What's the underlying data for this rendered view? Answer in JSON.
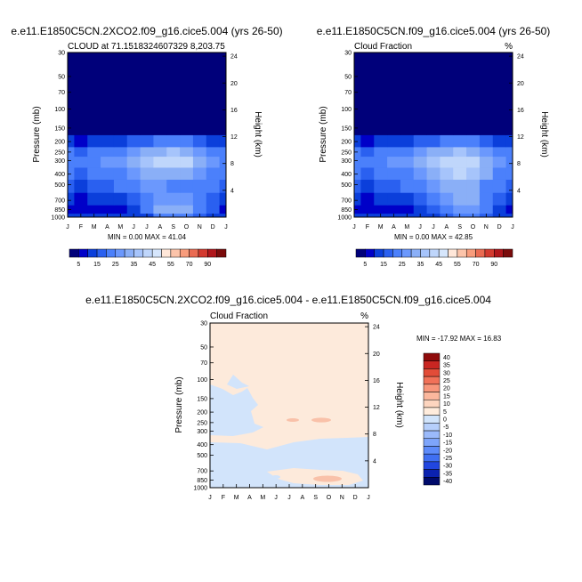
{
  "colors": {
    "abs_fill": [
      "#00007a",
      "#0000c8",
      "#0b3fdb",
      "#2a60f0",
      "#4b80fb",
      "#6b98fd",
      "#8aaff7",
      "#a6c4fb",
      "#bfd6fb",
      "#d6e6fc",
      "#ffe7d9",
      "#fcc4aa",
      "#f89c7c",
      "#ea6b52",
      "#d33a2f",
      "#b0161b",
      "#7a0b0b"
    ],
    "diff_fill": [
      "#000a6b",
      "#0b22b0",
      "#2146e0",
      "#3f6ff2",
      "#5d8bfa",
      "#7ea5fb",
      "#9bbafb",
      "#b6cffb",
      "#d1e4fb",
      "#ffecdc",
      "#fdd5bf",
      "#fbb79d",
      "#f8967b",
      "#f17158",
      "#e24c38",
      "#c92622",
      "#8f0b0b"
    ],
    "stratosphere": "#00007a",
    "diff_bg": "#fdeadb",
    "diff_neg": "#d2e4fb",
    "diff_pos": "#f9c1a9"
  },
  "chart_data": [
    {
      "type": "heatmap",
      "panel": "top-left",
      "title": "e.e11.E1850C5CN.2XCO2.f09_g16.cice5.004 (yrs 26-50)",
      "subtitle_left": "CLOUD at 71.1518324607329 8,203.75",
      "subtitle_right": "",
      "xlabel": "",
      "ylabel": "Pressure (mb)",
      "ylabel_right": "Height (km)",
      "x_ticks": [
        "J",
        "F",
        "M",
        "A",
        "M",
        "J",
        "J",
        "A",
        "S",
        "O",
        "N",
        "D",
        "J"
      ],
      "y_ticks": [
        "30",
        "50",
        "70",
        "100",
        "150",
        "200",
        "250",
        "300",
        "400",
        "500",
        "700",
        "850",
        "1000"
      ],
      "y_ticks_right": [
        "24",
        "20",
        "16",
        "12",
        "8",
        "4"
      ],
      "stats": "MIN =   0.00 MAX =  41.04",
      "min": 0.0,
      "max": 41.04,
      "colorbar_labels": [
        "5",
        "15",
        "25",
        "35",
        "45",
        "55",
        "70",
        "90"
      ],
      "colorbar_levels": [
        0,
        5,
        10,
        15,
        20,
        25,
        30,
        35,
        40,
        45,
        50,
        55,
        60,
        70,
        80,
        90,
        100
      ],
      "months": [
        "J",
        "F",
        "M",
        "A",
        "M",
        "J",
        "J",
        "A",
        "S",
        "O",
        "N",
        "D",
        "J"
      ],
      "levels_mb": [
        1000,
        850,
        700,
        500,
        400,
        300,
        250,
        200,
        150,
        100,
        70,
        50,
        30
      ],
      "values": [
        [
          14,
          12,
          13,
          10,
          11,
          12,
          13,
          20,
          24,
          22,
          16,
          12,
          14
        ],
        [
          6,
          5,
          6,
          5,
          8,
          14,
          22,
          30,
          34,
          32,
          24,
          16,
          6
        ],
        [
          11,
          9,
          10,
          11,
          14,
          18,
          23,
          26,
          28,
          26,
          22,
          16,
          11
        ],
        [
          16,
          14,
          16,
          18,
          20,
          22,
          25,
          25,
          24,
          22,
          22,
          20,
          16
        ],
        [
          20,
          18,
          20,
          22,
          24,
          26,
          30,
          32,
          34,
          32,
          28,
          24,
          20
        ],
        [
          24,
          22,
          24,
          26,
          28,
          30,
          36,
          40,
          41,
          40,
          34,
          28,
          24
        ],
        [
          20,
          18,
          20,
          22,
          24,
          26,
          30,
          34,
          35,
          34,
          28,
          24,
          20
        ],
        [
          10,
          8,
          10,
          12,
          14,
          16,
          18,
          20,
          20,
          20,
          18,
          14,
          10
        ],
        [
          0,
          0,
          0,
          0,
          0,
          0,
          2,
          2,
          2,
          2,
          0,
          0,
          0
        ],
        [
          0,
          0,
          0,
          0,
          0,
          0,
          0,
          0,
          0,
          0,
          0,
          0,
          0
        ],
        [
          0,
          0,
          0,
          0,
          0,
          0,
          0,
          0,
          0,
          0,
          0,
          0,
          0
        ],
        [
          0,
          0,
          0,
          0,
          0,
          0,
          0,
          0,
          0,
          0,
          0,
          0,
          0
        ],
        [
          0,
          0,
          0,
          0,
          0,
          0,
          0,
          0,
          0,
          0,
          0,
          0,
          0
        ]
      ]
    },
    {
      "type": "heatmap",
      "panel": "top-right",
      "title": "e.e11.E1850C5CN.f09_g16.cice5.004 (yrs 26-50)",
      "subtitle_left": "Cloud Fraction",
      "subtitle_right": "%",
      "xlabel": "",
      "ylabel": "Pressure (mb)",
      "ylabel_right": "Height (km)",
      "x_ticks": [
        "J",
        "F",
        "M",
        "A",
        "M",
        "J",
        "J",
        "A",
        "S",
        "O",
        "N",
        "D",
        "J"
      ],
      "y_ticks": [
        "30",
        "50",
        "70",
        "100",
        "150",
        "200",
        "250",
        "300",
        "400",
        "500",
        "700",
        "850",
        "1000"
      ],
      "y_ticks_right": [
        "24",
        "20",
        "16",
        "12",
        "8",
        "4"
      ],
      "stats": "MIN =   0.00 MAX =  42.85",
      "min": 0.0,
      "max": 42.85,
      "colorbar_labels": [
        "5",
        "15",
        "25",
        "35",
        "45",
        "55",
        "70",
        "90"
      ],
      "colorbar_levels": [
        0,
        5,
        10,
        15,
        20,
        25,
        30,
        35,
        40,
        45,
        50,
        55,
        60,
        70,
        80,
        90,
        100
      ],
      "months": [
        "J",
        "F",
        "M",
        "A",
        "M",
        "J",
        "J",
        "A",
        "S",
        "O",
        "N",
        "D",
        "J"
      ],
      "levels_mb": [
        1000,
        850,
        700,
        500,
        400,
        300,
        250,
        200,
        150,
        100,
        70,
        50,
        30
      ],
      "values": [
        [
          14,
          12,
          13,
          10,
          11,
          12,
          13,
          18,
          22,
          22,
          16,
          12,
          14
        ],
        [
          6,
          5,
          6,
          5,
          8,
          12,
          18,
          24,
          28,
          28,
          22,
          14,
          6
        ],
        [
          11,
          9,
          10,
          11,
          14,
          18,
          23,
          28,
          32,
          30,
          24,
          16,
          11
        ],
        [
          16,
          14,
          16,
          18,
          20,
          22,
          26,
          30,
          34,
          32,
          24,
          20,
          16
        ],
        [
          20,
          18,
          20,
          22,
          24,
          26,
          32,
          36,
          40,
          38,
          30,
          24,
          20
        ],
        [
          24,
          22,
          24,
          26,
          28,
          30,
          36,
          40,
          42,
          40,
          34,
          28,
          24
        ],
        [
          20,
          18,
          20,
          22,
          24,
          26,
          30,
          34,
          36,
          34,
          28,
          24,
          20
        ],
        [
          10,
          8,
          10,
          12,
          14,
          16,
          18,
          20,
          20,
          20,
          18,
          14,
          10
        ],
        [
          0,
          0,
          0,
          0,
          0,
          0,
          2,
          2,
          2,
          2,
          0,
          0,
          0
        ],
        [
          0,
          0,
          0,
          0,
          0,
          0,
          0,
          0,
          0,
          0,
          0,
          0,
          0
        ],
        [
          0,
          0,
          0,
          0,
          0,
          0,
          0,
          0,
          0,
          0,
          0,
          0,
          0
        ],
        [
          0,
          0,
          0,
          0,
          0,
          0,
          0,
          0,
          0,
          0,
          0,
          0,
          0
        ],
        [
          0,
          0,
          0,
          0,
          0,
          0,
          0,
          0,
          0,
          0,
          0,
          0,
          0
        ]
      ]
    },
    {
      "type": "heatmap",
      "panel": "bottom",
      "title": "e.e11.E1850C5CN.2XCO2.f09_g16.cice5.004 - e.e11.E1850C5CN.f09_g16.cice5.004",
      "subtitle_left": "Cloud Fraction",
      "subtitle_right": "%",
      "xlabel": "",
      "ylabel": "Pressure (mb)",
      "ylabel_right": "Height (km)",
      "x_ticks": [
        "J",
        "F",
        "M",
        "A",
        "M",
        "J",
        "J",
        "A",
        "S",
        "O",
        "N",
        "D",
        "J"
      ],
      "y_ticks": [
        "30",
        "50",
        "70",
        "100",
        "150",
        "200",
        "250",
        "300",
        "400",
        "500",
        "700",
        "850",
        "1000"
      ],
      "y_ticks_right": [
        "24",
        "20",
        "16",
        "12",
        "8",
        "4"
      ],
      "stats": "MIN = -17.92 MAX =  16.83",
      "min": -17.92,
      "max": 16.83,
      "colorbar_labels": [
        "40",
        "35",
        "30",
        "25",
        "20",
        "15",
        "10",
        "5",
        "0",
        "-5",
        "-10",
        "-15",
        "-20",
        "-25",
        "-30",
        "-35",
        "-40"
      ],
      "colorbar_levels": [
        -40,
        -35,
        -30,
        -25,
        -20,
        -15,
        -10,
        -5,
        0,
        5,
        10,
        15,
        20,
        25,
        30,
        35,
        40
      ]
    }
  ]
}
